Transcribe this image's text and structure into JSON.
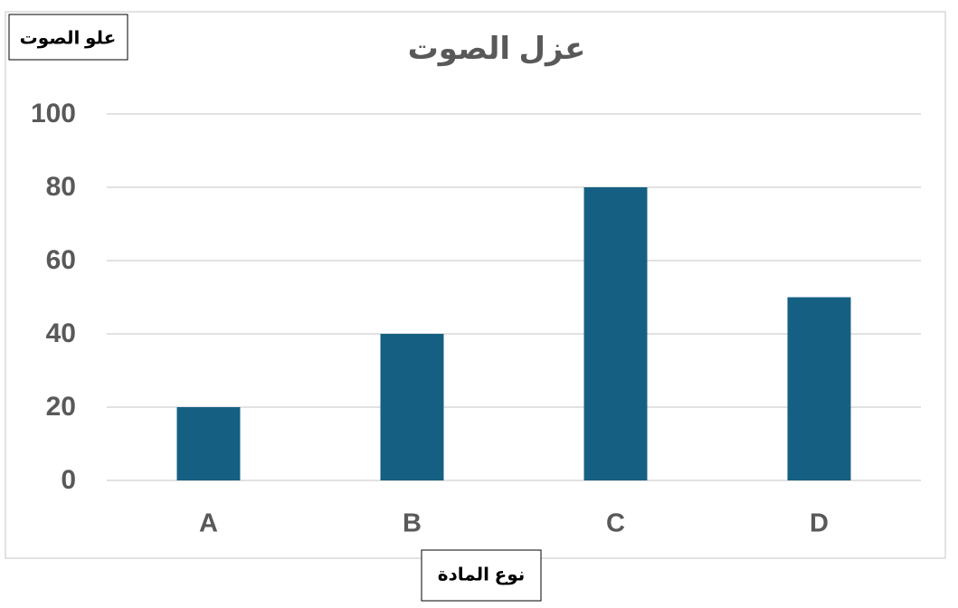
{
  "chart_data": {
    "type": "bar",
    "title": "عزل الصوت",
    "y_label": "علو الصوت",
    "x_label": "نوع المادة",
    "categories": [
      "A",
      "B",
      "C",
      "D"
    ],
    "values": [
      20,
      40,
      80,
      50
    ],
    "color": "#156082",
    "ylim": [
      0,
      100
    ],
    "yticks": [
      0,
      20,
      40,
      60,
      80,
      100
    ],
    "grid": true
  }
}
